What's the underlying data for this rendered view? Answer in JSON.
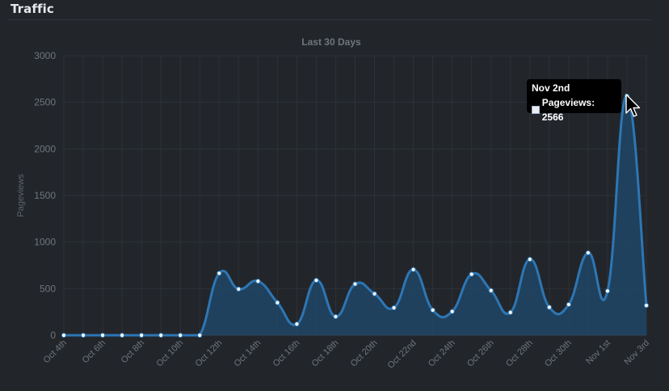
{
  "panel": {
    "title": "Traffic"
  },
  "chart_data": {
    "type": "area",
    "title": "Last 30 Days",
    "xlabel": "",
    "ylabel": "Pageviews",
    "ylim": [
      0,
      3000
    ],
    "yticks": [
      "0",
      "500",
      "1000",
      "1500",
      "2000",
      "2500",
      "3000"
    ],
    "xtick_labels": [
      "Oct 4th",
      "Oct 6th",
      "Oct 8th",
      "Oct 10th",
      "Oct 12th",
      "Oct 14th",
      "Oct 16th",
      "Oct 18th",
      "Oct 20th",
      "Oct 22nd",
      "Oct 24th",
      "Oct 26th",
      "Oct 28th",
      "Oct 30th",
      "Nov 1st",
      "Nov 3rd"
    ],
    "x": [
      "Oct 4th",
      "Oct 5th",
      "Oct 6th",
      "Oct 7th",
      "Oct 8th",
      "Oct 9th",
      "Oct 10th",
      "Oct 11th",
      "Oct 12th",
      "Oct 13th",
      "Oct 14th",
      "Oct 15th",
      "Oct 16th",
      "Oct 17th",
      "Oct 18th",
      "Oct 19th",
      "Oct 20th",
      "Oct 21st",
      "Oct 22nd",
      "Oct 23rd",
      "Oct 24th",
      "Oct 25th",
      "Oct 26th",
      "Oct 27th",
      "Oct 28th",
      "Oct 29th",
      "Oct 30th",
      "Oct 31st",
      "Nov 1st",
      "Nov 2nd",
      "Nov 3rd"
    ],
    "series": [
      {
        "name": "Pageviews",
        "values": [
          0,
          0,
          0,
          0,
          0,
          0,
          0,
          0,
          665,
          495,
          580,
          350,
          120,
          590,
          200,
          550,
          445,
          295,
          705,
          270,
          255,
          655,
          480,
          245,
          815,
          300,
          330,
          885,
          475,
          2566,
          320
        ]
      }
    ],
    "grid": true,
    "legend": "none",
    "colors": {
      "line": "#2d76b4",
      "fill": "#1e4666",
      "point": "#ffffff",
      "grid": "#2d3238",
      "axis_text": "#6f757c"
    }
  },
  "tooltip": {
    "date": "Nov 2nd",
    "series": "Pageviews",
    "value": "2566",
    "text": "Pageviews: 2566"
  },
  "cursor_icon": "arrow-pointer-icon"
}
